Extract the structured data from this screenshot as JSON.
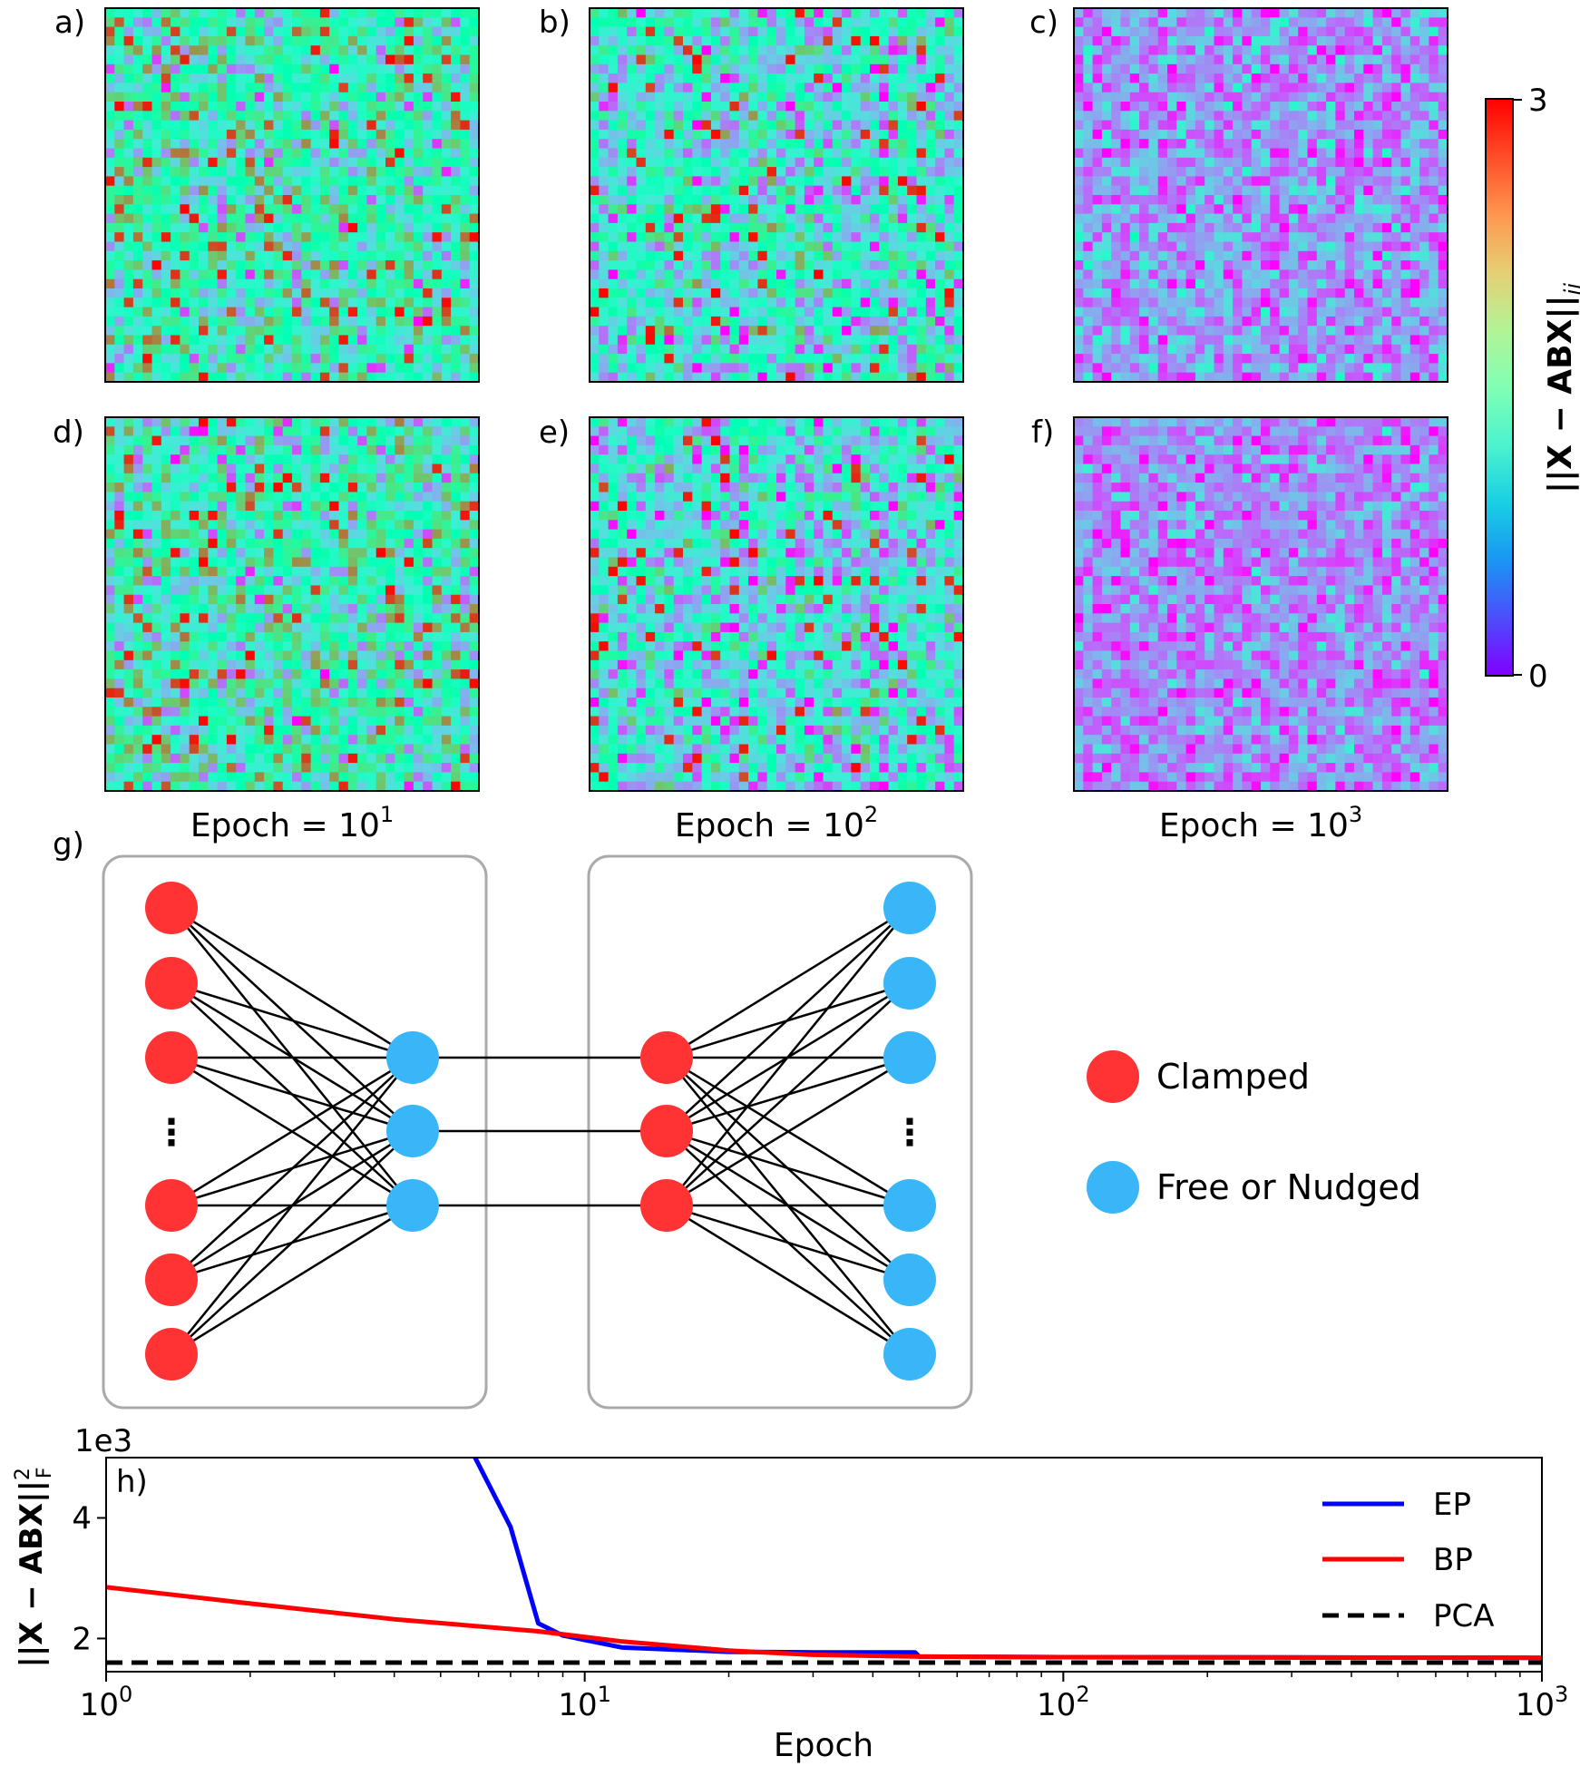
{
  "chart_data": [
    {
      "type": "heatmap",
      "panels": [
        {
          "label": "a)",
          "row": "top",
          "epoch_exp": 1,
          "mean": 1.45,
          "spread": 1.0
        },
        {
          "label": "b)",
          "row": "top",
          "epoch_exp": 2,
          "mean": 1.15,
          "spread": 0.95
        },
        {
          "label": "c)",
          "row": "top",
          "epoch_exp": 3,
          "mean": 0.6,
          "spread": 0.55
        },
        {
          "label": "d)",
          "row": "bottom",
          "epoch_exp": 1,
          "mean": 1.4,
          "spread": 1.0
        },
        {
          "label": "e)",
          "row": "bottom",
          "epoch_exp": 2,
          "mean": 1.05,
          "spread": 0.95
        },
        {
          "label": "f)",
          "row": "bottom",
          "epoch_exp": 3,
          "mean": 0.55,
          "spread": 0.5
        }
      ],
      "grid_size": 40,
      "column_labels": [
        {
          "base": "Epoch = 10",
          "exp": "1"
        },
        {
          "base": "Epoch = 10",
          "exp": "2"
        },
        {
          "base": "Epoch = 10",
          "exp": "3"
        }
      ],
      "colorbar": {
        "min": 0,
        "max": 3,
        "min_label": "0",
        "max_label": "3",
        "label": "||X − ABX||",
        "label_sub": "ij",
        "colormap": "rainbow"
      }
    },
    {
      "type": "line",
      "panel_label": "h)",
      "title": "",
      "xlabel": "Epoch",
      "ylabel": "||X − ABX||",
      "ylabel_sup": "2",
      "ylabel_sub": "F",
      "xscale": "log",
      "xlim": [
        1,
        1000
      ],
      "ylim": [
        1.45,
        5.0
      ],
      "offset_text": "1e3",
      "yticks": [
        2,
        4
      ],
      "ytick_labels": [
        "2",
        "4"
      ],
      "xticks": [
        1,
        10,
        100,
        1000
      ],
      "xtick_labels": [
        {
          "base": "10",
          "exp": "0"
        },
        {
          "base": "10",
          "exp": "1"
        },
        {
          "base": "10",
          "exp": "2"
        },
        {
          "base": "10",
          "exp": "3"
        }
      ],
      "series": [
        {
          "name": "EP",
          "color": "#0000ff",
          "style": "solid",
          "x": [
            5.9,
            7,
            8,
            9,
            12,
            20,
            30,
            49,
            50,
            100,
            1000
          ],
          "y": [
            5.0,
            3.85,
            2.25,
            2.05,
            1.85,
            1.78,
            1.77,
            1.77,
            1.7,
            1.69,
            1.68
          ]
        },
        {
          "name": "BP",
          "color": "#ff0000",
          "style": "solid",
          "x": [
            1,
            2,
            4,
            8,
            12,
            20,
            30,
            50,
            100,
            1000
          ],
          "y": [
            2.85,
            2.58,
            2.32,
            2.12,
            1.95,
            1.8,
            1.73,
            1.7,
            1.69,
            1.68
          ]
        },
        {
          "name": "PCA",
          "color": "#000000",
          "style": "dashed",
          "x": [
            1,
            1000
          ],
          "y": [
            1.6,
            1.6
          ]
        }
      ],
      "legend_position": "top-right"
    },
    {
      "type": "diagram",
      "panel_label": "g)",
      "legend": [
        {
          "name": "Clamped",
          "color": "#ff3333"
        },
        {
          "name": "Free or Nudged",
          "color": "#38b6f7"
        }
      ],
      "ellipsis": "⋮"
    }
  ]
}
